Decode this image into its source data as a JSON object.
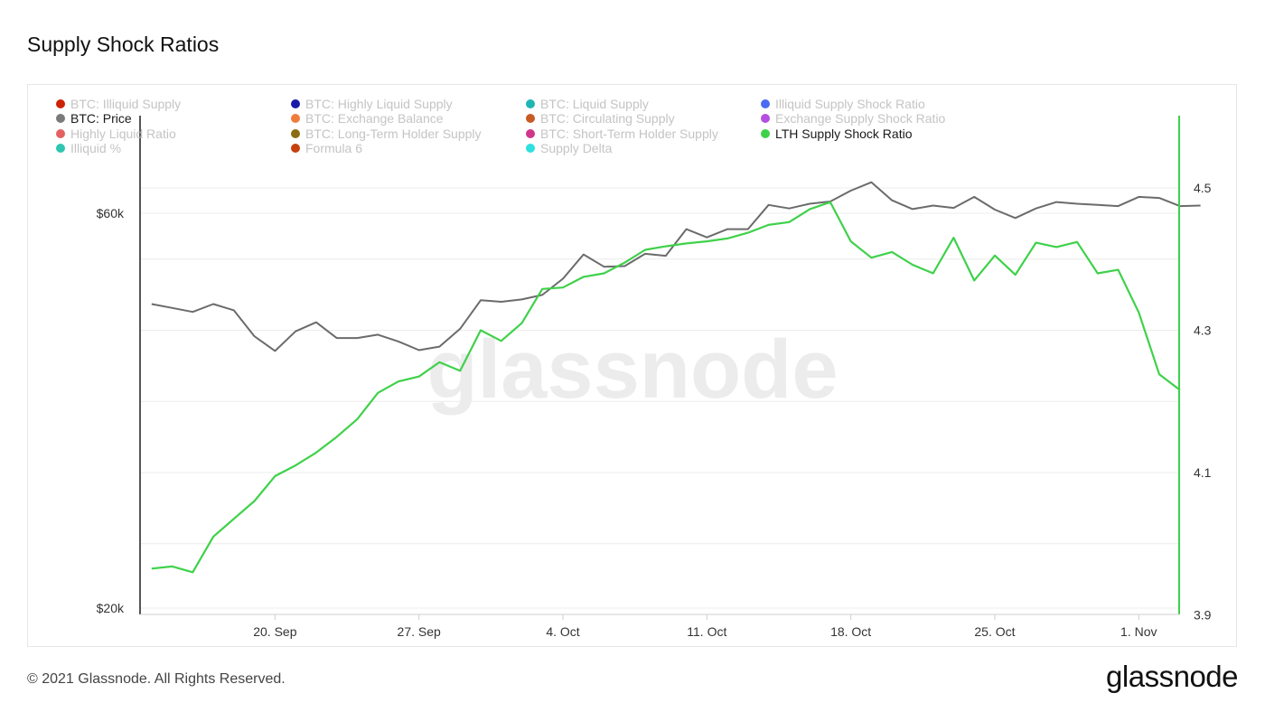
{
  "title": "Supply Shock Ratios",
  "footer": "© 2021 Glassnode. All Rights Reserved.",
  "logo_text": "glassnode",
  "chart_data": {
    "type": "line",
    "title": "Supply Shock Ratios",
    "watermark": "glassnode",
    "x_ticks": [
      "20. Sep",
      "27. Sep",
      "4. Oct",
      "11. Oct",
      "18. Oct",
      "25. Oct",
      "1. Nov"
    ],
    "left_axis": {
      "ticks": [
        "$60k",
        "$20k"
      ],
      "scale": "log"
    },
    "right_axis": {
      "ticks": [
        "4.5",
        "4.3",
        "4.1",
        "3.9"
      ],
      "range": [
        3.9,
        4.6
      ]
    },
    "grid": true,
    "legend_placement": "top",
    "legend": [
      {
        "label": "BTC: Illiquid Supply",
        "color": "#cc2200",
        "active": false
      },
      {
        "label": "BTC: Highly Liquid Supply",
        "color": "#1a1aaa",
        "active": false
      },
      {
        "label": "BTC: Liquid Supply",
        "color": "#1fb5b5",
        "active": false
      },
      {
        "label": "Illiquid Supply Shock Ratio",
        "color": "#4a6cf0",
        "active": false
      },
      {
        "label": "BTC: Price",
        "color": "#7a7a7a",
        "active": true
      },
      {
        "label": "BTC: Exchange Balance",
        "color": "#f07c3a",
        "active": false
      },
      {
        "label": "BTC: Circulating Supply",
        "color": "#c85a23",
        "active": false
      },
      {
        "label": "Exchange Supply Shock Ratio",
        "color": "#b44ee0",
        "active": false
      },
      {
        "label": "Highly Liquid Ratio",
        "color": "#e56060",
        "active": false
      },
      {
        "label": "BTC: Long-Term Holder Supply",
        "color": "#8a6d12",
        "active": false
      },
      {
        "label": "BTC: Short-Term Holder Supply",
        "color": "#d0368a",
        "active": false
      },
      {
        "label": "LTH Supply Shock Ratio",
        "color": "#3fd14a",
        "active": true
      },
      {
        "label": "Illiquid %",
        "color": "#2ec6b0",
        "active": false
      },
      {
        "label": "Formula 6",
        "color": "#c6420d",
        "active": false
      },
      {
        "label": "Supply Delta",
        "color": "#2ee0e0",
        "active": false
      }
    ],
    "x_start": "2021-09-14",
    "series": [
      {
        "name": "BTC: Price",
        "axis": "left",
        "color": "#6b6b6b",
        "values": [
          46600,
          46100,
          45600,
          46600,
          45800,
          42600,
          40900,
          43200,
          44300,
          42400,
          42400,
          42800,
          42000,
          41000,
          41400,
          43500,
          47100,
          46900,
          47200,
          47800,
          50000,
          53500,
          51700,
          51800,
          53600,
          53300,
          57400,
          56100,
          57400,
          57400,
          61400,
          60800,
          61600,
          62000,
          63900,
          65400,
          62200,
          60700,
          61300,
          60900,
          62800,
          60600,
          59200,
          60800,
          61900,
          61600,
          61400,
          61200,
          62800,
          62600,
          61200,
          61300
        ]
      },
      {
        "name": "LTH Supply Shock Ratio",
        "axis": "right",
        "color": "#3fd14a",
        "values": [
          3.965,
          3.968,
          3.96,
          4.01,
          4.035,
          4.06,
          4.095,
          4.11,
          4.128,
          4.15,
          4.175,
          4.212,
          4.228,
          4.235,
          4.255,
          4.243,
          4.3,
          4.285,
          4.31,
          4.358,
          4.36,
          4.375,
          4.38,
          4.395,
          4.413,
          4.418,
          4.422,
          4.425,
          4.429,
          4.437,
          4.448,
          4.452,
          4.47,
          4.48,
          4.425,
          4.402,
          4.41,
          4.392,
          4.38,
          4.43,
          4.37,
          4.405,
          4.378,
          4.423,
          4.417,
          4.424,
          4.38,
          4.385,
          4.325,
          4.238,
          4.216
        ]
      }
    ]
  }
}
